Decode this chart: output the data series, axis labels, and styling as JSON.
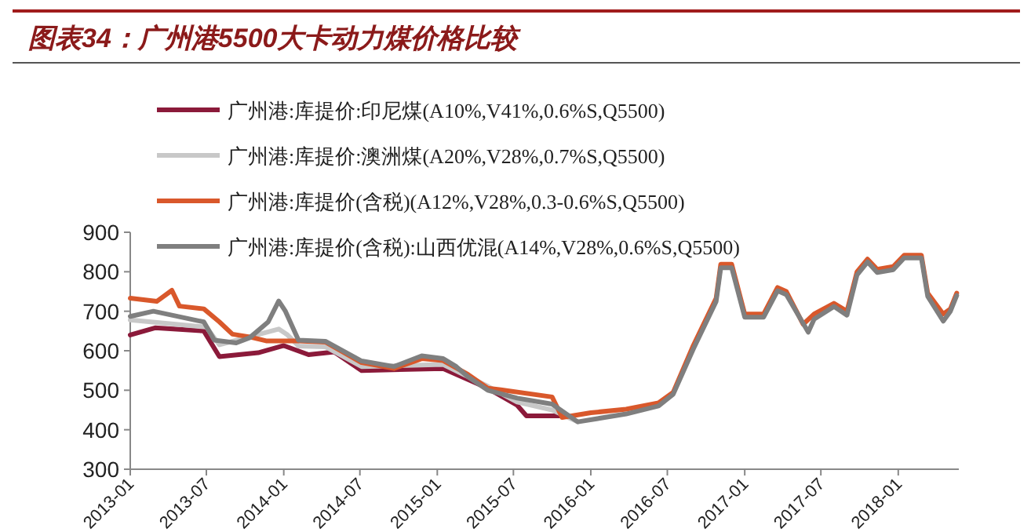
{
  "chart_data": {
    "type": "line",
    "title": "图表34：广州港5500大卡动力煤价格比较",
    "xlim": [
      "2013-01-01",
      "2018-05-25"
    ],
    "xticks": [
      "2013-01",
      "2013-07",
      "2014-01",
      "2014-07",
      "2015-01",
      "2015-07",
      "2016-01",
      "2016-07",
      "2017-01",
      "2017-07",
      "2018-01"
    ],
    "ylim": [
      300,
      900
    ],
    "yticks": [
      300,
      400,
      500,
      600,
      700,
      800,
      900
    ],
    "legend": "top left",
    "series": [
      {
        "name": "广州港:库提价:印尼煤(A10%,V41%,0.6%S,Q5500)",
        "color": "#8b1a3a",
        "x": [
          "2013-01-01",
          "2013-03-01",
          "2013-06-25",
          "2013-08-01",
          "2013-11-01",
          "2014-01-01",
          "2014-03-01",
          "2014-05-01",
          "2014-07-05",
          "2015-01-15",
          "2015-05-01",
          "2015-07-10",
          "2015-08-01",
          "2015-11-01"
        ],
        "values": [
          640,
          658,
          650,
          585,
          595,
          613,
          590,
          597,
          550,
          555,
          505,
          462,
          435,
          435
        ]
      },
      {
        "name": "广州港:库提价:澳洲煤(A20%,V28%,0.7%S,Q5500)",
        "color": "#c8c8c8",
        "x": [
          "2013-01-01",
          "2013-07-01",
          "2013-08-01",
          "2013-12-20",
          "2014-01-10",
          "2014-02-05",
          "2014-04-10",
          "2014-07-05",
          "2015-01-15",
          "2015-05-01",
          "2015-07-10",
          "2015-10-01",
          "2015-12-01"
        ],
        "values": [
          678,
          660,
          615,
          655,
          640,
          612,
          610,
          560,
          565,
          510,
          470,
          450,
          420
        ]
      },
      {
        "name": "广州港:库提价(含税)(A12%,V28%,0.3-0.6%S,Q5500)",
        "color": "#d9582b",
        "x": [
          "2013-01-01",
          "2013-03-05",
          "2013-04-10",
          "2013-04-28",
          "2013-06-25",
          "2013-08-01",
          "2013-09-01",
          "2013-10-12",
          "2013-11-20",
          "2014-02-05",
          "2014-04-10",
          "2014-07-05",
          "2014-09-20",
          "2014-11-25",
          "2015-01-15",
          "2015-03-15",
          "2015-05-01",
          "2015-06-01",
          "2015-10-01",
          "2015-10-25",
          "2016-01-01",
          "2016-03-25",
          "2016-06-10",
          "2016-07-15",
          "2016-09-01",
          "2016-10-25",
          "2016-11-05",
          "2016-12-01",
          "2017-01-01",
          "2017-02-15",
          "2017-03-20",
          "2017-04-10",
          "2017-05-20",
          "2017-06-15",
          "2017-08-01",
          "2017-09-01",
          "2017-09-25",
          "2017-10-20",
          "2017-11-12",
          "2017-12-20",
          "2018-01-15",
          "2018-02-25",
          "2018-03-12",
          "2018-04-18",
          "2018-05-05",
          "2018-05-20"
        ],
        "values": [
          733,
          725,
          753,
          713,
          706,
          673,
          642,
          635,
          625,
          625,
          622,
          570,
          555,
          580,
          575,
          540,
          505,
          501,
          483,
          431,
          443,
          452,
          468,
          495,
          614,
          733,
          819,
          819,
          693,
          693,
          760,
          750,
          667,
          693,
          720,
          700,
          800,
          832,
          806,
          813,
          842,
          842,
          746,
          693,
          706,
          746
        ]
      },
      {
        "name": "广州港:库提价(含税):山西优混(A14%,V28%,0.6%S,Q5500)",
        "color": "#7f7f7f",
        "x": [
          "2013-01-01",
          "2013-02-25",
          "2013-06-25",
          "2013-07-20",
          "2013-09-10",
          "2013-10-12",
          "2013-11-25",
          "2013-12-20",
          "2014-01-05",
          "2014-02-05",
          "2014-04-10",
          "2014-07-05",
          "2014-09-20",
          "2014-11-25",
          "2015-01-15",
          "2015-02-15",
          "2015-03-15",
          "2015-05-01",
          "2015-07-10",
          "2015-10-01",
          "2015-12-01",
          "2016-03-25",
          "2016-06-10",
          "2016-07-15",
          "2016-09-01",
          "2016-10-25",
          "2016-11-05",
          "2016-12-01",
          "2017-01-01",
          "2017-02-15",
          "2017-03-20",
          "2017-04-10",
          "2017-06-01",
          "2017-06-15",
          "2017-08-01",
          "2017-09-01",
          "2017-09-25",
          "2017-10-20",
          "2017-11-12",
          "2017-12-20",
          "2018-01-15",
          "2018-02-25",
          "2018-03-12",
          "2018-04-18",
          "2018-05-05",
          "2018-05-20"
        ],
        "values": [
          687,
          700,
          673,
          627,
          620,
          633,
          673,
          726,
          700,
          627,
          624,
          574,
          560,
          587,
          580,
          560,
          534,
          500,
          480,
          465,
          420,
          440,
          460,
          490,
          605,
          725,
          810,
          810,
          685,
          685,
          752,
          742,
          647,
          680,
          712,
          690,
          792,
          825,
          798,
          805,
          835,
          835,
          738,
          675,
          700,
          740
        ]
      }
    ]
  }
}
